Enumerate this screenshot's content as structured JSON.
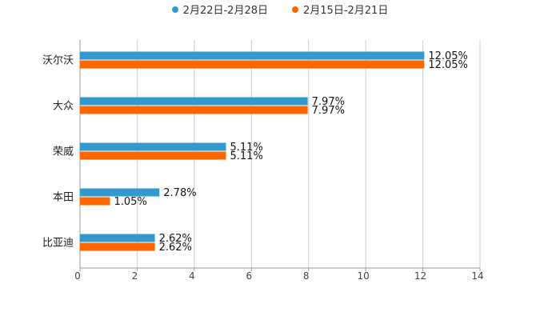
{
  "chart_data": {
    "type": "bar",
    "orientation": "horizontal",
    "categories": [
      "沃尔沃",
      "大众",
      "荣威",
      "本田",
      "比亚迪"
    ],
    "series": [
      {
        "name": "2月22日-2月28日",
        "color": "#3399cc",
        "values": [
          12.05,
          7.97,
          5.11,
          2.78,
          2.62
        ],
        "labels": [
          "12.05%",
          "7.97%",
          "5.11%",
          "2.78%",
          "2.62%"
        ]
      },
      {
        "name": "2月15日-2月21日",
        "color": "#ff6600",
        "values": [
          12.05,
          7.97,
          5.11,
          1.05,
          2.62
        ],
        "labels": [
          "12.05%",
          "7.97%",
          "5.11%",
          "1.05%",
          "2.62%"
        ]
      }
    ],
    "xlim": [
      0,
      14
    ],
    "xticks": [
      0,
      2,
      4,
      6,
      8,
      10,
      12,
      14
    ],
    "grid": true,
    "legend_position": "top-center"
  }
}
